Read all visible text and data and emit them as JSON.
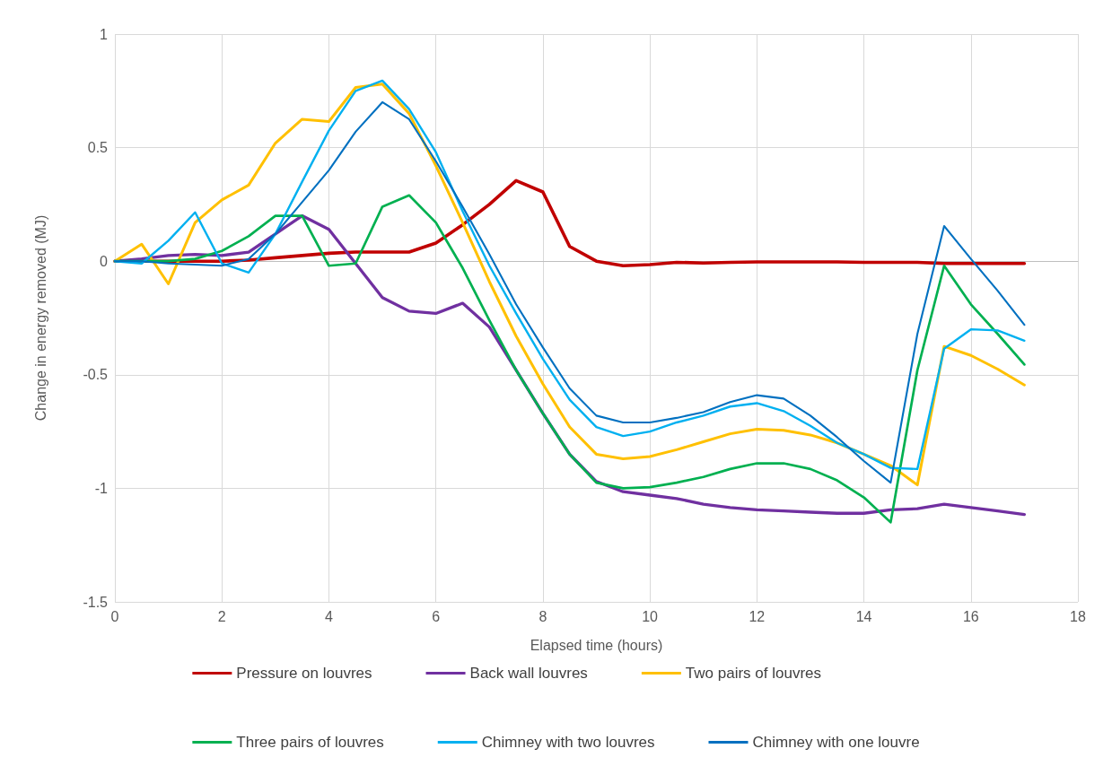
{
  "chart_data": {
    "type": "line",
    "xlabel": "Elapsed time (hours)",
    "ylabel": "Change in energy removed (MJ)",
    "x": [
      0,
      0.5,
      1,
      1.5,
      2,
      2.5,
      3,
      3.5,
      4,
      4.5,
      5,
      5.5,
      6,
      6.5,
      7,
      7.5,
      8,
      8.5,
      9,
      9.5,
      10,
      10.5,
      11,
      11.5,
      12,
      12.5,
      13,
      13.5,
      14,
      14.5,
      15,
      15.5,
      16,
      16.5,
      17
    ],
    "series": [
      {
        "name": "Pressure on louvres",
        "color": "#c00000",
        "values": [
          0,
          0,
          0,
          0,
          0,
          0.005,
          0.015,
          0.025,
          0.035,
          0.04,
          0.04,
          0.04,
          0.08,
          0.16,
          0.25,
          0.355,
          0.305,
          0.065,
          0,
          -0.02,
          -0.015,
          -0.005,
          -0.008,
          -0.005,
          -0.003,
          -0.003,
          -0.003,
          -0.003,
          -0.005,
          -0.005,
          -0.005,
          -0.01,
          -0.01,
          -0.01,
          -0.01
        ]
      },
      {
        "name": "Back wall louvres",
        "color": "#7030a0",
        "values": [
          0,
          0.01,
          0.025,
          0.03,
          0.025,
          0.04,
          0.12,
          0.2,
          0.14,
          -0.01,
          -0.16,
          -0.22,
          -0.23,
          -0.185,
          -0.29,
          -0.48,
          -0.67,
          -0.85,
          -0.97,
          -1.015,
          -1.03,
          -1.045,
          -1.07,
          -1.085,
          -1.095,
          -1.1,
          -1.105,
          -1.11,
          -1.11,
          -1.095,
          -1.09,
          -1.07,
          -1.085,
          -1.1,
          -1.115
        ]
      },
      {
        "name": "Two pairs of louvres",
        "color": "#ffc000",
        "values": [
          0,
          0.075,
          -0.1,
          0.17,
          0.27,
          0.335,
          0.52,
          0.625,
          0.615,
          0.765,
          0.78,
          0.65,
          0.42,
          0.17,
          -0.09,
          -0.33,
          -0.54,
          -0.73,
          -0.85,
          -0.87,
          -0.86,
          -0.83,
          -0.795,
          -0.76,
          -0.74,
          -0.745,
          -0.765,
          -0.8,
          -0.85,
          -0.9,
          -0.985,
          -0.375,
          -0.415,
          -0.475,
          -0.545
        ]
      },
      {
        "name": "Three pairs of louvres",
        "color": "#00b050",
        "values": [
          0,
          0,
          0,
          0.01,
          0.045,
          0.11,
          0.2,
          0.2,
          -0.02,
          -0.01,
          0.24,
          0.29,
          0.17,
          -0.03,
          -0.26,
          -0.48,
          -0.67,
          -0.85,
          -0.975,
          -1,
          -0.995,
          -0.975,
          -0.95,
          -0.915,
          -0.89,
          -0.89,
          -0.915,
          -0.965,
          -1.04,
          -1.15,
          -0.48,
          -0.02,
          -0.19,
          -0.32,
          -0.455
        ]
      },
      {
        "name": "Chimney with two louvres",
        "color": "#00b0f0",
        "values": [
          0,
          -0.01,
          0.09,
          0.215,
          -0.01,
          -0.05,
          0.12,
          0.35,
          0.575,
          0.75,
          0.795,
          0.67,
          0.48,
          0.22,
          -0.02,
          -0.23,
          -0.43,
          -0.61,
          -0.73,
          -0.77,
          -0.75,
          -0.71,
          -0.68,
          -0.64,
          -0.625,
          -0.66,
          -0.725,
          -0.8,
          -0.85,
          -0.91,
          -0.915,
          -0.385,
          -0.3,
          -0.305,
          -0.35
        ]
      },
      {
        "name": "Chimney with one louvre",
        "color": "#0070c0",
        "values": [
          0,
          0,
          -0.01,
          -0.015,
          -0.02,
          0.01,
          0.12,
          0.26,
          0.4,
          0.57,
          0.7,
          0.625,
          0.44,
          0.24,
          0.03,
          -0.19,
          -0.38,
          -0.56,
          -0.68,
          -0.71,
          -0.71,
          -0.69,
          -0.665,
          -0.62,
          -0.59,
          -0.605,
          -0.68,
          -0.775,
          -0.88,
          -0.975,
          -0.32,
          0.155,
          0.01,
          -0.13,
          -0.28
        ]
      }
    ],
    "xlim": [
      0,
      18
    ],
    "xticks": [
      0,
      2,
      4,
      6,
      8,
      10,
      12,
      14,
      16,
      18
    ],
    "ylim": [
      -1.5,
      1
    ],
    "yticks": [
      -1.5,
      -1,
      -0.5,
      0,
      0.5,
      1
    ],
    "grid": true,
    "legend": "bottom",
    "marker": "none",
    "line_style": "solid"
  }
}
